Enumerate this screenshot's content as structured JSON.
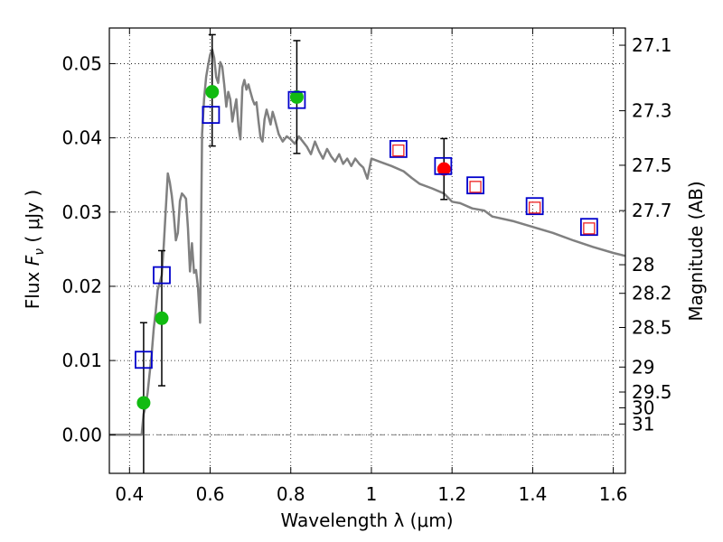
{
  "chart_data": {
    "type": "scatter",
    "xlabel": "Wavelength  λ (μm)",
    "ylabel": "Flux  F_ν  ( μJy )",
    "ylabel_parts": {
      "prefix": "Flux  ",
      "symbol": "F",
      "subscript": "ν",
      "suffix": "  ( μJy )"
    },
    "y2label": "Magnitude (AB)",
    "xlim": [
      0.35,
      1.63
    ],
    "ylim": [
      -0.0052,
      0.0548
    ],
    "grid": true,
    "colors": {
      "sed": "#808080",
      "green": "#11bb11",
      "blue_square": "#0000cc",
      "red_square": "#ee2222",
      "red_point": "#ff0000",
      "errorbar": "#000000",
      "zero_line": "#555555"
    },
    "x_ticks": [
      {
        "value": 0.4,
        "label": "0.4"
      },
      {
        "value": 0.6,
        "label": "0.6"
      },
      {
        "value": 0.8,
        "label": "0.8"
      },
      {
        "value": 1.0,
        "label": "1"
      },
      {
        "value": 1.2,
        "label": "1.2"
      },
      {
        "value": 1.4,
        "label": "1.4"
      },
      {
        "value": 1.6,
        "label": "1.6"
      }
    ],
    "y_ticks": [
      {
        "value": 0.0,
        "label": "0.00"
      },
      {
        "value": 0.01,
        "label": "0.01"
      },
      {
        "value": 0.02,
        "label": "0.02"
      },
      {
        "value": 0.03,
        "label": "0.03"
      },
      {
        "value": 0.04,
        "label": "0.04"
      },
      {
        "value": 0.05,
        "label": "0.05"
      }
    ],
    "mag_ticks": [
      {
        "mag": 27.1,
        "label": "27.1"
      },
      {
        "mag": 27.3,
        "label": "27.3"
      },
      {
        "mag": 27.5,
        "label": "27.5"
      },
      {
        "mag": 27.7,
        "label": "27.7"
      },
      {
        "mag": 28.0,
        "label": "28"
      },
      {
        "mag": 28.2,
        "label": "28.2"
      },
      {
        "mag": 28.5,
        "label": "28.5"
      },
      {
        "mag": 29.0,
        "label": "29"
      },
      {
        "mag": 29.5,
        "label": "29.5"
      },
      {
        "mag": 30.0,
        "label": "30"
      },
      {
        "mag": 31.0,
        "label": "31"
      }
    ],
    "sed_curve": {
      "x": [
        0.35,
        0.43,
        0.435,
        0.44,
        0.445,
        0.45,
        0.455,
        0.46,
        0.465,
        0.47,
        0.475,
        0.48,
        0.485,
        0.49,
        0.495,
        0.5,
        0.505,
        0.51,
        0.515,
        0.52,
        0.525,
        0.53,
        0.535,
        0.54,
        0.545,
        0.55,
        0.555,
        0.56,
        0.565,
        0.57,
        0.575,
        0.58,
        0.585,
        0.59,
        0.595,
        0.6,
        0.605,
        0.61,
        0.615,
        0.62,
        0.625,
        0.63,
        0.635,
        0.64,
        0.645,
        0.65,
        0.655,
        0.66,
        0.665,
        0.67,
        0.675,
        0.68,
        0.685,
        0.69,
        0.695,
        0.7,
        0.705,
        0.71,
        0.715,
        0.72,
        0.725,
        0.73,
        0.735,
        0.74,
        0.745,
        0.75,
        0.755,
        0.76,
        0.77,
        0.78,
        0.79,
        0.8,
        0.81,
        0.82,
        0.83,
        0.84,
        0.85,
        0.86,
        0.87,
        0.88,
        0.89,
        0.9,
        0.91,
        0.92,
        0.93,
        0.94,
        0.95,
        0.96,
        0.97,
        0.98,
        0.99,
        1.0,
        1.02,
        1.05,
        1.08,
        1.1,
        1.12,
        1.15,
        1.18,
        1.2,
        1.22,
        1.25,
        1.28,
        1.3,
        1.35,
        1.4,
        1.45,
        1.5,
        1.55,
        1.6,
        1.63
      ],
      "y": [
        0.0,
        0.0,
        0.0028,
        0.0038,
        0.0057,
        0.0083,
        0.0108,
        0.0143,
        0.0166,
        0.0195,
        0.0205,
        0.0215,
        0.0255,
        0.0305,
        0.0352,
        0.034,
        0.0322,
        0.0295,
        0.0262,
        0.0272,
        0.0315,
        0.0325,
        0.0322,
        0.0318,
        0.0278,
        0.022,
        0.0258,
        0.0218,
        0.0222,
        0.0198,
        0.0151,
        0.0405,
        0.0452,
        0.0482,
        0.0498,
        0.0512,
        0.0519,
        0.0508,
        0.0482,
        0.0474,
        0.0502,
        0.0496,
        0.0472,
        0.0442,
        0.0462,
        0.0452,
        0.0422,
        0.0438,
        0.0452,
        0.0415,
        0.0398,
        0.0468,
        0.0478,
        0.0465,
        0.0472,
        0.0462,
        0.0452,
        0.0445,
        0.0448,
        0.0422,
        0.04,
        0.0395,
        0.0425,
        0.0438,
        0.0428,
        0.0418,
        0.0435,
        0.0426,
        0.0405,
        0.0395,
        0.0402,
        0.0398,
        0.0392,
        0.0402,
        0.0395,
        0.0388,
        0.0378,
        0.0395,
        0.0382,
        0.0372,
        0.0385,
        0.0375,
        0.0368,
        0.0378,
        0.0365,
        0.0372,
        0.0362,
        0.0372,
        0.0365,
        0.036,
        0.0345,
        0.0372,
        0.0368,
        0.0362,
        0.0355,
        0.0346,
        0.0338,
        0.0332,
        0.0325,
        0.0314,
        0.0312,
        0.0305,
        0.0302,
        0.0294,
        0.0288,
        0.028,
        0.0272,
        0.0262,
        0.0253,
        0.0245,
        0.0241
      ]
    },
    "series": [
      {
        "name": "green_points",
        "marker": "circle",
        "points": [
          {
            "x": 0.435,
            "y": 0.0043,
            "yerr_low": -0.0052,
            "yerr_high": 0.0151
          },
          {
            "x": 0.48,
            "y": 0.0157,
            "yerr_low": 0.0066,
            "yerr_high": 0.0248
          },
          {
            "x": 0.605,
            "y": 0.0462,
            "yerr_low": 0.0389,
            "yerr_high": 0.0539
          },
          {
            "x": 0.815,
            "y": 0.0455,
            "yerr_low": 0.0379,
            "yerr_high": 0.0531
          }
        ]
      },
      {
        "name": "red_point",
        "marker": "circle",
        "points": [
          {
            "x": 1.18,
            "y": 0.0358,
            "yerr_low": 0.0317,
            "yerr_high": 0.0399
          }
        ]
      },
      {
        "name": "blue_squares",
        "marker": "square",
        "points": [
          {
            "x": 0.435,
            "y": 0.0101
          },
          {
            "x": 0.48,
            "y": 0.0215
          },
          {
            "x": 0.602,
            "y": 0.0431
          },
          {
            "x": 0.815,
            "y": 0.0451
          },
          {
            "x": 1.067,
            "y": 0.0385
          },
          {
            "x": 1.178,
            "y": 0.0362
          },
          {
            "x": 1.258,
            "y": 0.0336
          },
          {
            "x": 1.405,
            "y": 0.0308
          },
          {
            "x": 1.54,
            "y": 0.028
          }
        ]
      },
      {
        "name": "red_squares",
        "marker": "square",
        "points": [
          {
            "x": 1.067,
            "y": 0.0383
          },
          {
            "x": 1.258,
            "y": 0.0334
          },
          {
            "x": 1.405,
            "y": 0.0306
          },
          {
            "x": 1.54,
            "y": 0.0278
          }
        ]
      }
    ]
  }
}
